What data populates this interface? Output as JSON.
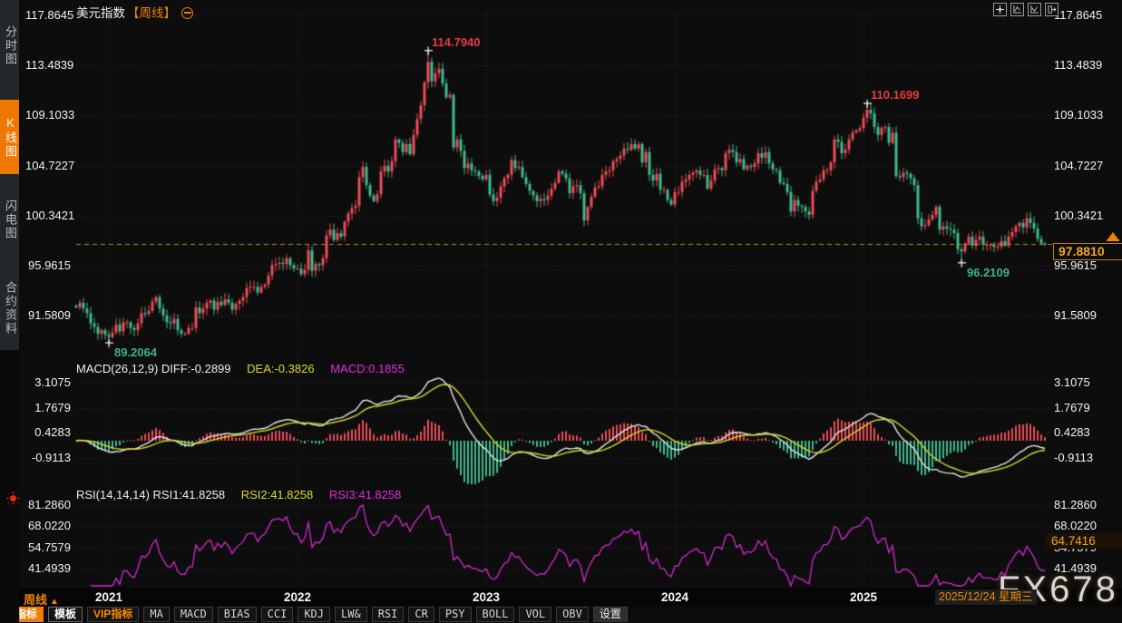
{
  "title": {
    "symbol": "美元指数",
    "period": "【周线】"
  },
  "sidebar": {
    "tabs": [
      {
        "label": "分时图",
        "active": false
      },
      {
        "label": "K线图",
        "active": true
      },
      {
        "label": "闪电图",
        "active": false
      },
      {
        "label": "合约资料",
        "active": false
      }
    ]
  },
  "panes": {
    "macd_header": {
      "main": "MACD(26,12,9) DIFF:-0.2899",
      "dea": "DEA:-0.3826",
      "macd": "MACD:0.1855"
    },
    "rsi_header": {
      "main": "RSI(14,14,14) RSI1:41.8258",
      "rsi2": "RSI2:41.8258",
      "rsi3": "RSI3:41.8258"
    }
  },
  "badges": {
    "last_price": "97.8810",
    "rsi_value": "64.7416",
    "date": "2025/12/24 星期三"
  },
  "xaxis": {
    "period": "周线",
    "period_arrow": "▲"
  },
  "toolbar": [
    {
      "label": "指标",
      "variant": "active"
    },
    {
      "label": "模板",
      "variant": "outlined"
    },
    {
      "label": "VIP指标",
      "variant": "vip"
    },
    {
      "label": "MA",
      "variant": "plain"
    },
    {
      "label": "MACD",
      "variant": "plain"
    },
    {
      "label": "BIAS",
      "variant": "plain"
    },
    {
      "label": "CCI",
      "variant": "plain"
    },
    {
      "label": "KDJ",
      "variant": "plain"
    },
    {
      "label": "LW&",
      "variant": "plain"
    },
    {
      "label": "RSI",
      "variant": "plain"
    },
    {
      "label": "CR",
      "variant": "plain"
    },
    {
      "label": "PSY",
      "variant": "plain"
    },
    {
      "label": "BOLL",
      "variant": "plain"
    },
    {
      "label": "VOL",
      "variant": "plain"
    },
    {
      "label": "OBV",
      "variant": "plain"
    },
    {
      "label": "设置",
      "variant": "settings"
    }
  ],
  "watermark": "FX678",
  "chart_data": {
    "type": "candlestick",
    "symbol": "美元指数",
    "period": "weekly",
    "price_axis_ticks": [
      117.8645,
      113.4839,
      109.1033,
      104.7227,
      100.3421,
      95.9615,
      91.5809
    ],
    "year_ticks": [
      {
        "label": "2021",
        "week_index": 9
      },
      {
        "label": "2022",
        "week_index": 61
      },
      {
        "label": "2023",
        "week_index": 113
      },
      {
        "label": "2024",
        "week_index": 165
      },
      {
        "label": "2025",
        "week_index": 217
      }
    ],
    "last_date_label": "2025/12/24 星期三",
    "last_price": 97.881,
    "closes_order": [
      "y2020",
      "y2021",
      "y2022",
      "y2023",
      "y2024",
      "y2025"
    ],
    "weekly_closes": {
      "y2020": [
        92.3,
        92.7,
        92.2,
        91.8,
        90.9,
        90.6,
        90.0,
        90.3,
        89.9
      ],
      "y2021": [
        89.7,
        90.1,
        90.8,
        90.2,
        91.0,
        91.0,
        90.5,
        90.3,
        90.9,
        91.8,
        91.7,
        92.0,
        92.8,
        93.2,
        92.2,
        91.6,
        91.0,
        90.9,
        91.3,
        90.3,
        90.0,
        90.0,
        90.5,
        90.5,
        92.3,
        91.8,
        92.2,
        92.7,
        92.9,
        92.1,
        92.8,
        92.5,
        93.0,
        92.7,
        92.1,
        92.6,
        92.9,
        93.2,
        94.0,
        94.1,
        94.1,
        93.6,
        94.1,
        94.3,
        95.1,
        96.0,
        96.1,
        96.2,
        96.1,
        96.6,
        96.0,
        95.7
      ],
      "y2022": [
        95.7,
        95.2,
        95.6,
        97.3,
        95.5,
        96.1,
        96.0,
        96.6,
        98.6,
        99.1,
        98.2,
        98.8,
        98.5,
        99.8,
        100.5,
        101.0,
        101.2,
        103.7,
        104.6,
        103.0,
        102.1,
        101.6,
        102.2,
        104.2,
        104.7,
        104.2,
        105.1,
        107.0,
        106.7,
        105.9,
        106.6,
        105.7,
        107.4,
        108.8,
        110.0,
        112.0,
        113.8,
        112.1,
        112.8,
        113.2,
        111.9,
        110.7,
        110.9,
        106.3,
        107.0,
        106.0,
        104.5,
        104.9,
        104.3,
        104.2,
        103.8,
        103.5
      ],
      "y2023": [
        103.9,
        102.2,
        101.6,
        101.9,
        102.9,
        103.6,
        103.9,
        105.2,
        104.5,
        104.6,
        103.7,
        103.1,
        102.5,
        102.1,
        101.6,
        101.8,
        101.7,
        102.1,
        102.7,
        103.2,
        104.2,
        104.0,
        103.6,
        102.3,
        102.9,
        103.0,
        102.3,
        99.9,
        101.1,
        102.0,
        102.8,
        102.9,
        103.9,
        104.2,
        104.3,
        105.1,
        105.3,
        105.6,
        106.2,
        106.1,
        106.6,
        106.2,
        106.6,
        105.0,
        105.9,
        103.9,
        103.4,
        104.0,
        102.6,
        102.6,
        101.7,
        101.3
      ],
      "y2024": [
        102.4,
        102.4,
        103.3,
        103.5,
        103.9,
        104.1,
        104.3,
        103.9,
        103.9,
        102.7,
        103.4,
        104.4,
        104.5,
        104.3,
        105.8,
        106.1,
        105.9,
        105.0,
        105.3,
        104.4,
        104.7,
        104.6,
        104.9,
        105.8,
        105.4,
        105.9,
        104.9,
        104.4,
        104.3,
        103.2,
        103.1,
        102.4,
        100.7,
        101.7,
        101.2,
        101.1,
        100.7,
        100.4,
        102.5,
        103.3,
        103.5,
        104.3,
        104.3,
        105.0,
        107.0,
        106.8,
        105.8,
        106.1,
        107.0,
        107.6,
        107.8,
        108.0
      ],
      "y2025": [
        108.9,
        109.6,
        109.3,
        108.1,
        107.4,
        108.0,
        108.1,
        106.7,
        107.6,
        103.8,
        103.7,
        104.1,
        104.0,
        103.6,
        103.0,
        100.1,
        99.4,
        99.5,
        100.0,
        100.4,
        101.1,
        99.1,
        99.4,
        99.2,
        99.1,
        98.8,
        97.4,
        97.2,
        97.9,
        98.5,
        97.7,
        98.2,
        98.5,
        97.8,
        97.8,
        97.8,
        97.6,
        97.6,
        98.1,
        97.7,
        98.5,
        98.9,
        99.4,
        99.7,
        99.3,
        100.1,
        99.7,
        99.2,
        98.3,
        97.9,
        97.88
      ]
    },
    "extremes": [
      {
        "name": "high-2022",
        "index": 97,
        "type": "high",
        "value": 114.794,
        "label": "114.7940",
        "color": "red"
      },
      {
        "name": "high-2025",
        "index": 218,
        "type": "high",
        "value": 110.1699,
        "label": "110.1699",
        "color": "red"
      },
      {
        "name": "low-2021",
        "index": 9,
        "type": "low",
        "value": 89.2064,
        "label": "89.2064",
        "color": "green"
      },
      {
        "name": "low-2025",
        "index": 244,
        "type": "low",
        "value": 96.2109,
        "label": "96.2109",
        "color": "green"
      }
    ],
    "macd": {
      "params": [
        26,
        12,
        9
      ],
      "diff": -0.2899,
      "dea": -0.3826,
      "hist": 0.1855,
      "axis_ticks": [
        3.1075,
        1.7679,
        0.4283,
        -0.9113
      ]
    },
    "rsi": {
      "params": [
        14,
        14,
        14
      ],
      "values": [
        41.8258,
        41.8258,
        41.8258
      ],
      "axis_ticks": [
        81.286,
        68.022,
        54.7579,
        41.4939
      ],
      "badge": 64.7416
    },
    "colors": {
      "up": "#ea4e56",
      "down": "#41ba8d",
      "diff_line": "#e8e8e8",
      "dea_line": "#d9d92b",
      "rsi_line": "#d42ad4",
      "accent_orange": "#f08200",
      "annotation_red": "#ea3943",
      "annotation_green": "#3cb586",
      "grid": "rgba(200,200,200,0.22)"
    }
  }
}
